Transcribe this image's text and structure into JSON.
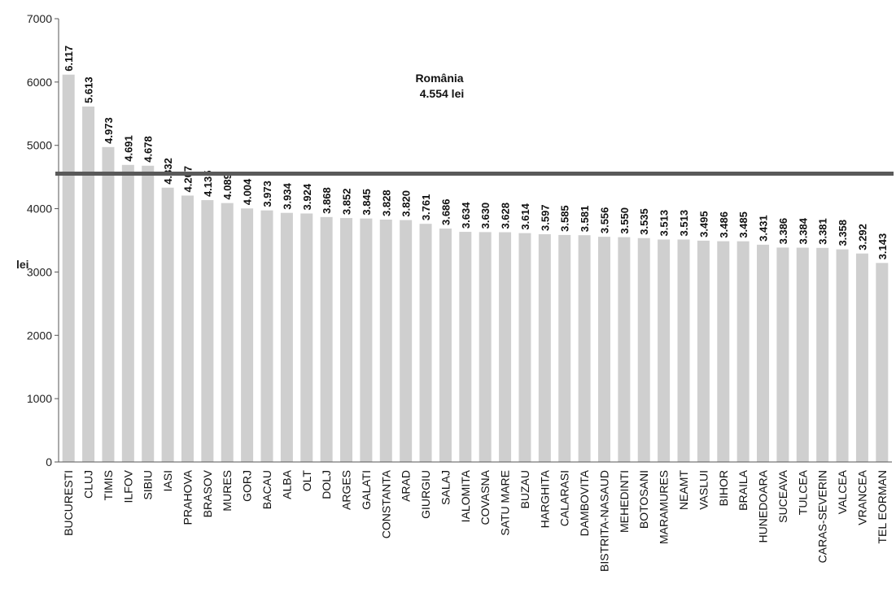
{
  "chart_data": {
    "type": "bar",
    "ylabel": "lei",
    "ylim": [
      0,
      7000
    ],
    "y_ticks": [
      "0",
      "1000",
      "2000",
      "3000",
      "4000",
      "5000",
      "6000",
      "7000"
    ],
    "categories": [
      "BUCURESTI",
      "CLUJ",
      "TIMIS",
      "ILFOV",
      "SIBIU",
      "IASI",
      "PRAHOVA",
      "BRASOV",
      "MURES",
      "GORJ",
      "BACAU",
      "ALBA",
      "OLT",
      "DOLJ",
      "ARGES",
      "GALATI",
      "CONSTANTA",
      "ARAD",
      "GIURGIU",
      "SALAJ",
      "IALOMITA",
      "COVASNA",
      "SATU MARE",
      "BUZAU",
      "HARGHITA",
      "CALARASI",
      "DAMBOVITA",
      "BISTRITA-NASAUD",
      "MEHEDINTI",
      "BOTOSANI",
      "MARAMURES",
      "NEAMT",
      "VASLUI",
      "BIHOR",
      "BRAILA",
      "HUNEDOARA",
      "SUCEAVA",
      "TULCEA",
      "CARAS-SEVERIN",
      "VALCEA",
      "VRANCEA",
      "TEL EORMAN"
    ],
    "values": [
      6117,
      5613,
      4973,
      4691,
      4678,
      4332,
      4207,
      4135,
      4089,
      4004,
      3973,
      3934,
      3924,
      3868,
      3852,
      3845,
      3828,
      3820,
      3761,
      3686,
      3634,
      3630,
      3628,
      3614,
      3597,
      3585,
      3581,
      3556,
      3550,
      3535,
      3513,
      3513,
      3495,
      3486,
      3485,
      3431,
      3386,
      3384,
      3381,
      3358,
      3292,
      3143
    ],
    "value_labels": [
      "6.117",
      "5.613",
      "4.973",
      "4.691",
      "4.678",
      "4.332",
      "4.207",
      "4.135",
      "4.089",
      "4.004",
      "3.973",
      "3.934",
      "3.924",
      "3.868",
      "3.852",
      "3.845",
      "3.828",
      "3.820",
      "3.761",
      "3.686",
      "3.634",
      "3.630",
      "3.628",
      "3.614",
      "3.597",
      "3.585",
      "3.581",
      "3.556",
      "3.550",
      "3.535",
      "3.513",
      "3.513",
      "3.495",
      "3.486",
      "3.485",
      "3.431",
      "3.386",
      "3.384",
      "3.381",
      "3.358",
      "3.292",
      "3.143"
    ],
    "reference_line": {
      "value": 4554,
      "label_line1": "România",
      "label_line2": "4.554 lei"
    },
    "grid": false,
    "colors": {
      "bar": "#cfcfcf",
      "reference_line": "#5a5a5a",
      "axis": "#555555"
    }
  }
}
